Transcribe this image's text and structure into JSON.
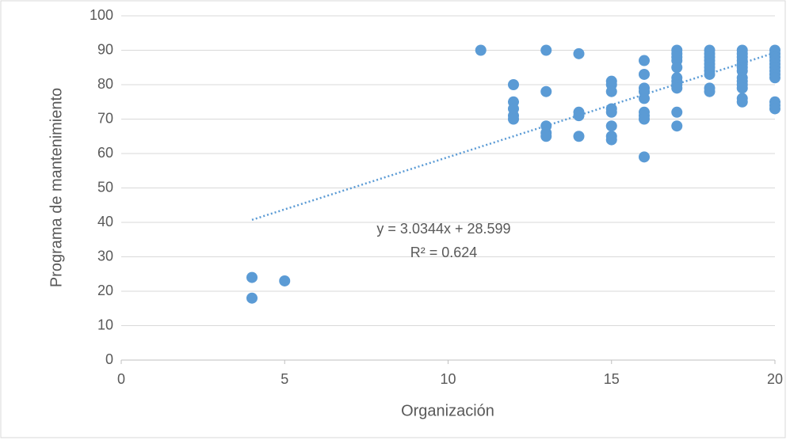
{
  "chart_data": {
    "type": "scatter",
    "x_label": "Organización",
    "y_label": "Programa de mantenimiento",
    "x": [
      4,
      4,
      5,
      11,
      12,
      12,
      12,
      12,
      12,
      13,
      13,
      13,
      13,
      13,
      14,
      14,
      14,
      14,
      15,
      15,
      15,
      15,
      15,
      15,
      15,
      15,
      16,
      16,
      16,
      16,
      16,
      16,
      16,
      16,
      16,
      17,
      17,
      17,
      17,
      17,
      17,
      17,
      17,
      17,
      17,
      17,
      18,
      18,
      18,
      18,
      18,
      18,
      18,
      18,
      18,
      18,
      19,
      19,
      19,
      19,
      19,
      19,
      19,
      19,
      19,
      19,
      19,
      19,
      19,
      20,
      20,
      20,
      20,
      20,
      20,
      20,
      20,
      20,
      20,
      20,
      20
    ],
    "values": [
      24,
      18,
      23,
      90,
      80,
      75,
      73,
      71,
      70,
      90,
      78,
      68,
      66,
      65,
      89,
      72,
      71,
      65,
      81,
      80,
      78,
      73,
      72,
      68,
      65,
      64,
      87,
      83,
      79,
      78,
      76,
      72,
      71,
      70,
      59,
      90,
      89,
      88,
      87,
      85,
      82,
      81,
      80,
      79,
      72,
      68,
      90,
      89,
      88,
      87,
      86,
      85,
      84,
      83,
      79,
      78,
      90,
      89,
      88,
      87,
      86,
      85,
      84,
      82,
      81,
      80,
      79,
      76,
      75,
      90,
      89,
      88,
      87,
      86,
      85,
      84,
      83,
      82,
      75,
      74,
      73
    ],
    "color": "#5b9bd5",
    "xlim": [
      0,
      20
    ],
    "xticks": [
      0,
      5,
      10,
      15,
      20
    ],
    "ylim": [
      0,
      100
    ],
    "yticks": [
      0,
      10,
      20,
      30,
      40,
      50,
      60,
      70,
      80,
      90,
      100
    ],
    "grid": true,
    "trendline": {
      "slope": 3.0344,
      "intercept": 28.599,
      "equation": "y = 3.0344x + 28.599",
      "r2": "R² = 0.624"
    }
  }
}
